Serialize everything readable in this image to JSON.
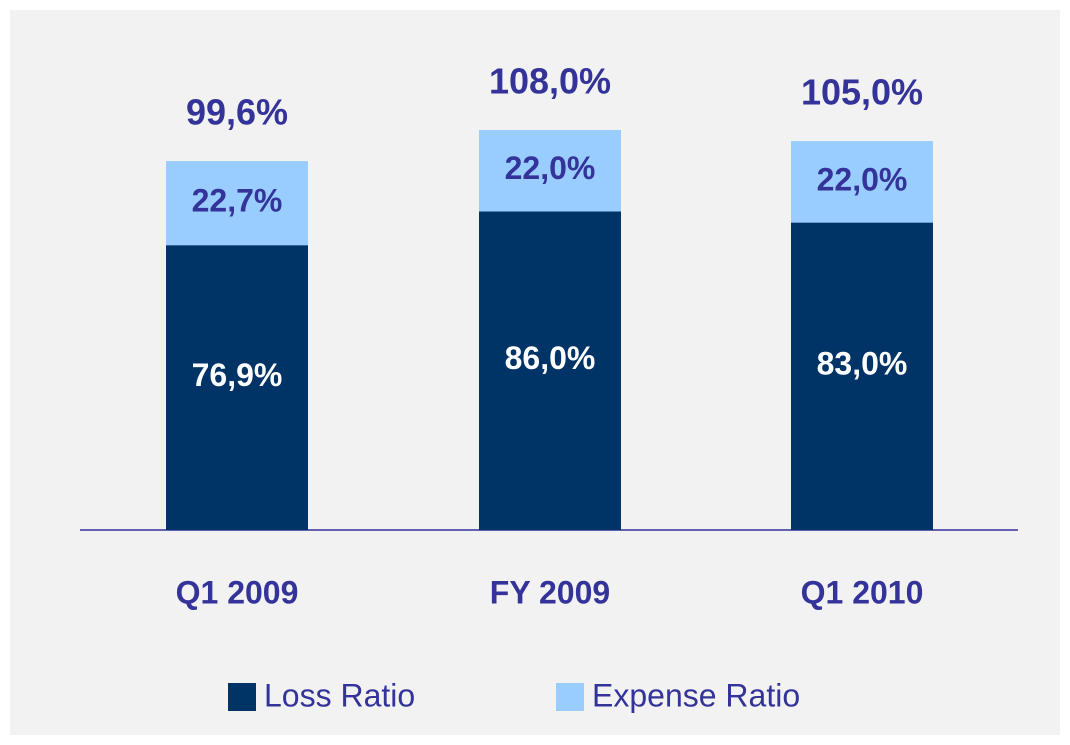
{
  "chart_data": {
    "type": "stacked_bar",
    "categories": [
      "Q1 2009",
      "FY 2009",
      "Q1 2010"
    ],
    "series": [
      {
        "name": "Loss Ratio",
        "color": "#003366",
        "values": [
          76.9,
          86.0,
          83.0
        ],
        "value_labels": [
          "76,9%",
          "86,0%",
          "83,0%"
        ]
      },
      {
        "name": "Expense Ratio",
        "color": "#99ccff",
        "values": [
          22.7,
          22.0,
          22.0
        ],
        "value_labels": [
          "22,7%",
          "22,0%",
          "22,0%"
        ]
      }
    ],
    "totals": [
      99.6,
      108.0,
      105.0
    ],
    "total_labels": [
      "99,6%",
      "108,0%",
      "105,0%"
    ],
    "ylim": [
      0,
      135
    ],
    "legend": "bottom"
  }
}
